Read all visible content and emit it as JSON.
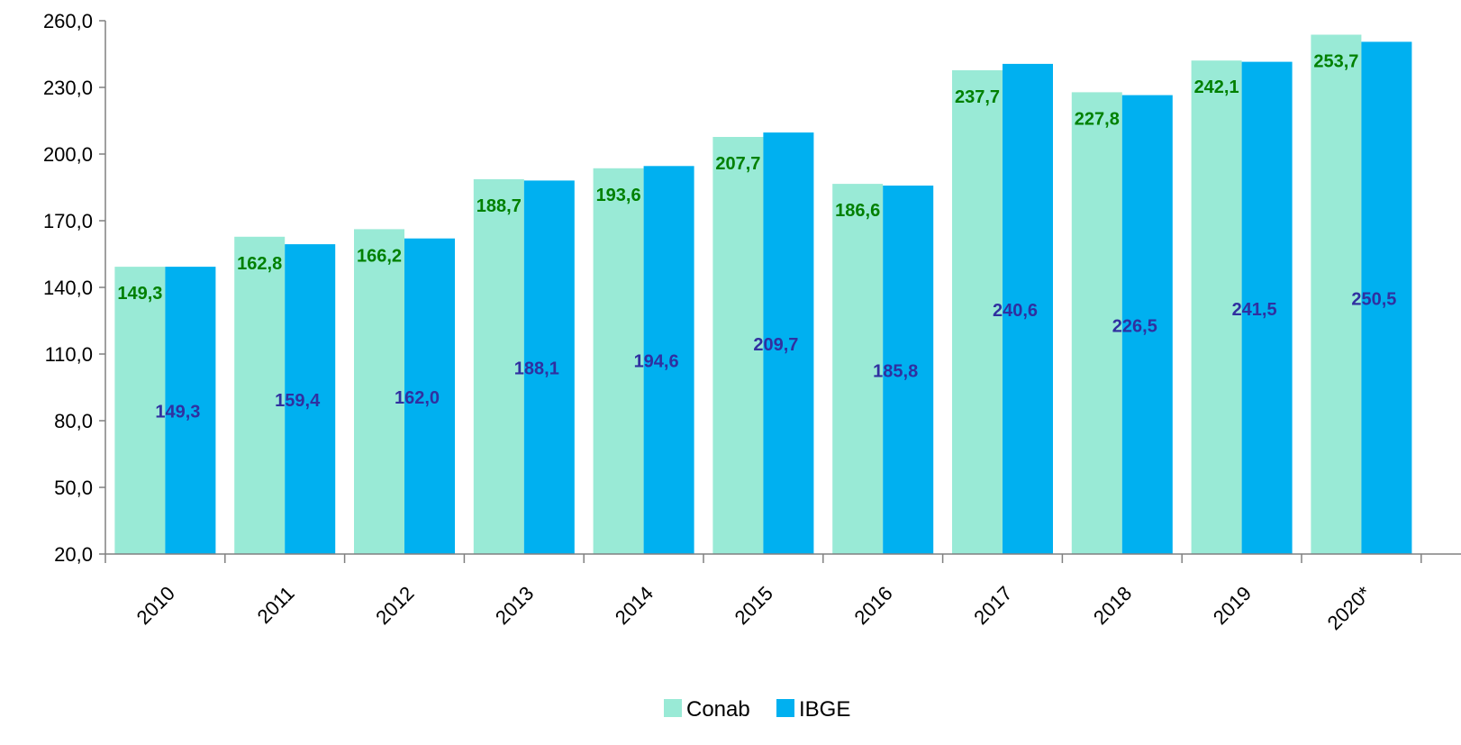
{
  "chart_data": {
    "type": "bar",
    "categories": [
      "2010",
      "2011",
      "2012",
      "2013",
      "2014",
      "2015",
      "2016",
      "2017",
      "2018",
      "2019",
      "2020*"
    ],
    "series": [
      {
        "name": "Conab",
        "values": [
          149.3,
          162.8,
          166.2,
          188.7,
          193.6,
          207.7,
          186.6,
          237.7,
          227.8,
          242.1,
          253.7
        ],
        "labels": [
          "149,3",
          "162,8",
          "166,2",
          "188,7",
          "193,6",
          "207,7",
          "186,6",
          "237,7",
          "227,8",
          "242,1",
          "253,7"
        ],
        "color": "#99EAD6",
        "label_color": "#008000"
      },
      {
        "name": "IBGE",
        "values": [
          149.3,
          159.4,
          162.0,
          188.1,
          194.6,
          209.7,
          185.8,
          240.6,
          226.5,
          241.5,
          250.5
        ],
        "labels": [
          "149,3",
          "159,4",
          "162,0",
          "188,1",
          "194,6",
          "209,7",
          "185,8",
          "240,6",
          "226,5",
          "241,5",
          "250,5"
        ],
        "color": "#00B0F0",
        "label_color": "#3030A0"
      }
    ],
    "y_ticks": [
      "20,0",
      "50,0",
      "80,0",
      "110,0",
      "140,0",
      "170,0",
      "200,0",
      "230,0",
      "260,0"
    ],
    "ylim": [
      20,
      260
    ],
    "grid": false,
    "legend": "bottom-center",
    "title": "",
    "xlabel": "",
    "ylabel": ""
  }
}
